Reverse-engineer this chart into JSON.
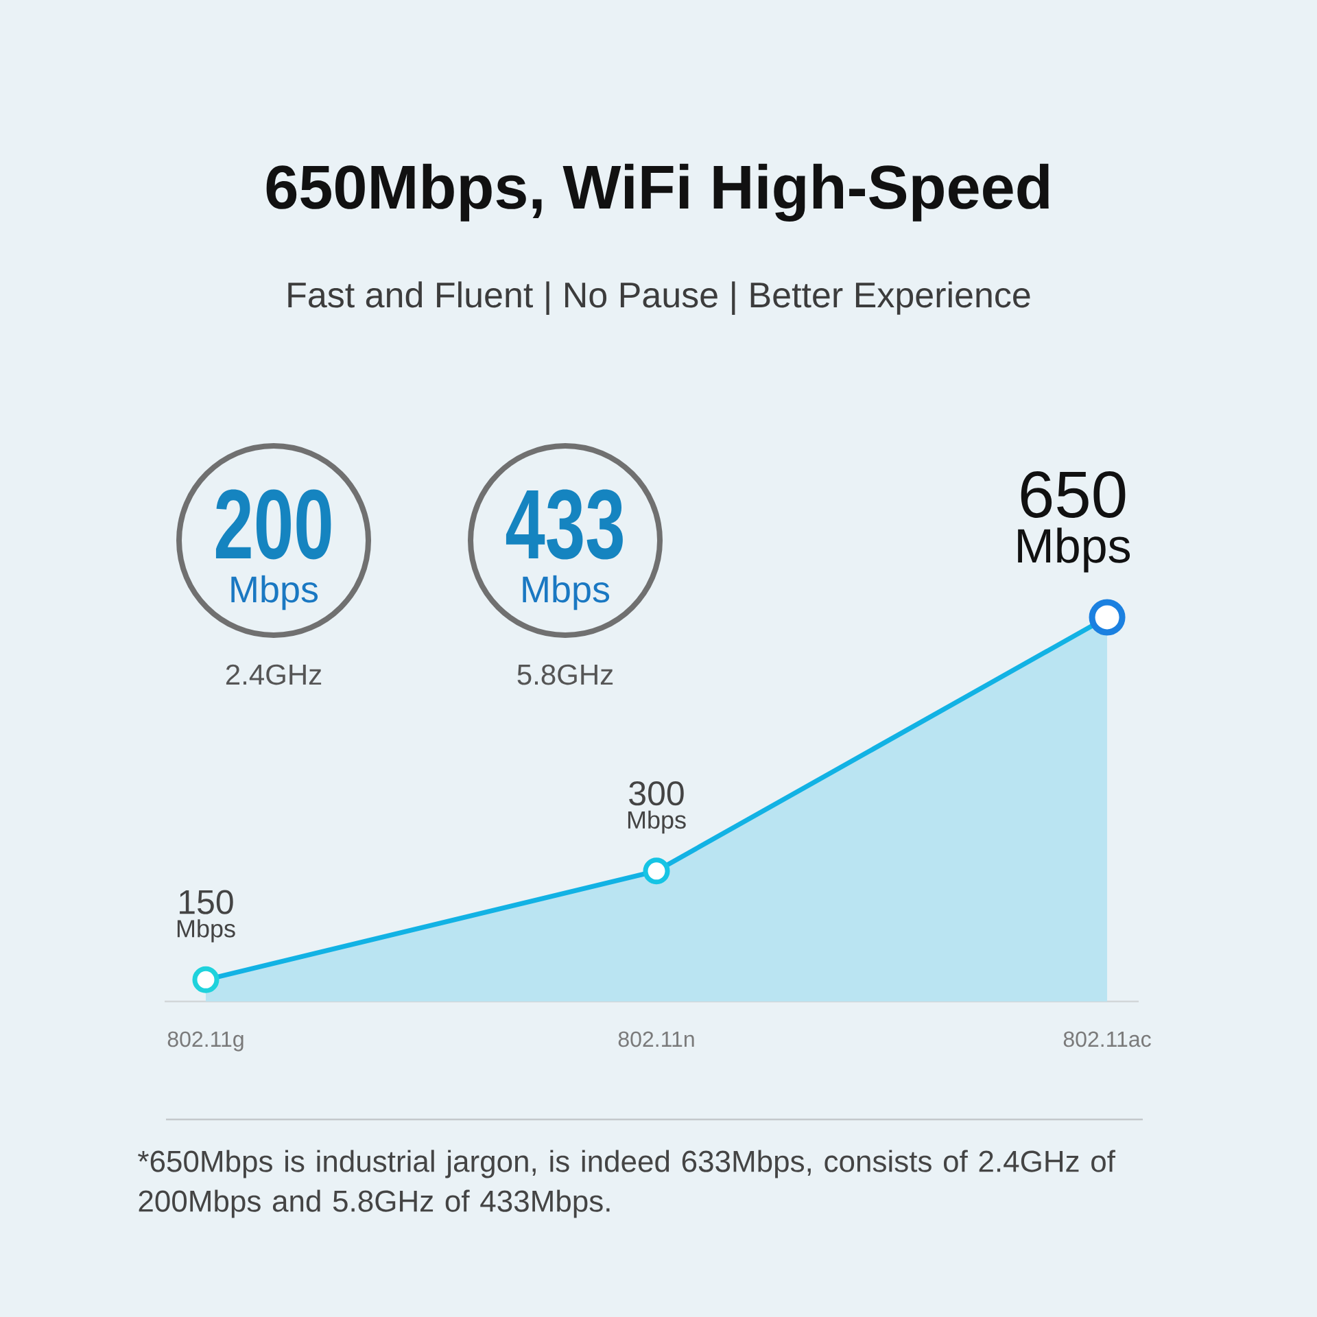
{
  "chart_data": {
    "type": "area",
    "title": "650Mbps, WiFi High-Speed",
    "subtitle": "Fast and Fluent | No Pause | Better Experience",
    "categories": [
      "802.11g",
      "802.11n",
      "802.11ac"
    ],
    "values": [
      150,
      300,
      650
    ],
    "color": "#12b2e4",
    "colors": [
      "#1fd2dc",
      "#16c4e4",
      "#1b80e0"
    ],
    "data_labels": true,
    "marker": "circle",
    "tick_labels": "x",
    "annotations": [
      "200",
      "Mbps",
      "2.4GHz",
      "433",
      "Mbps",
      "5.8GHz",
      "Mbps",
      "Mbps",
      "Mbps",
      "*650Mbps is industrial jargon, is indeed 633Mbps, consists of 2.4GHz of 200Mbps and 5.8GHz of 433Mbps."
    ]
  }
}
